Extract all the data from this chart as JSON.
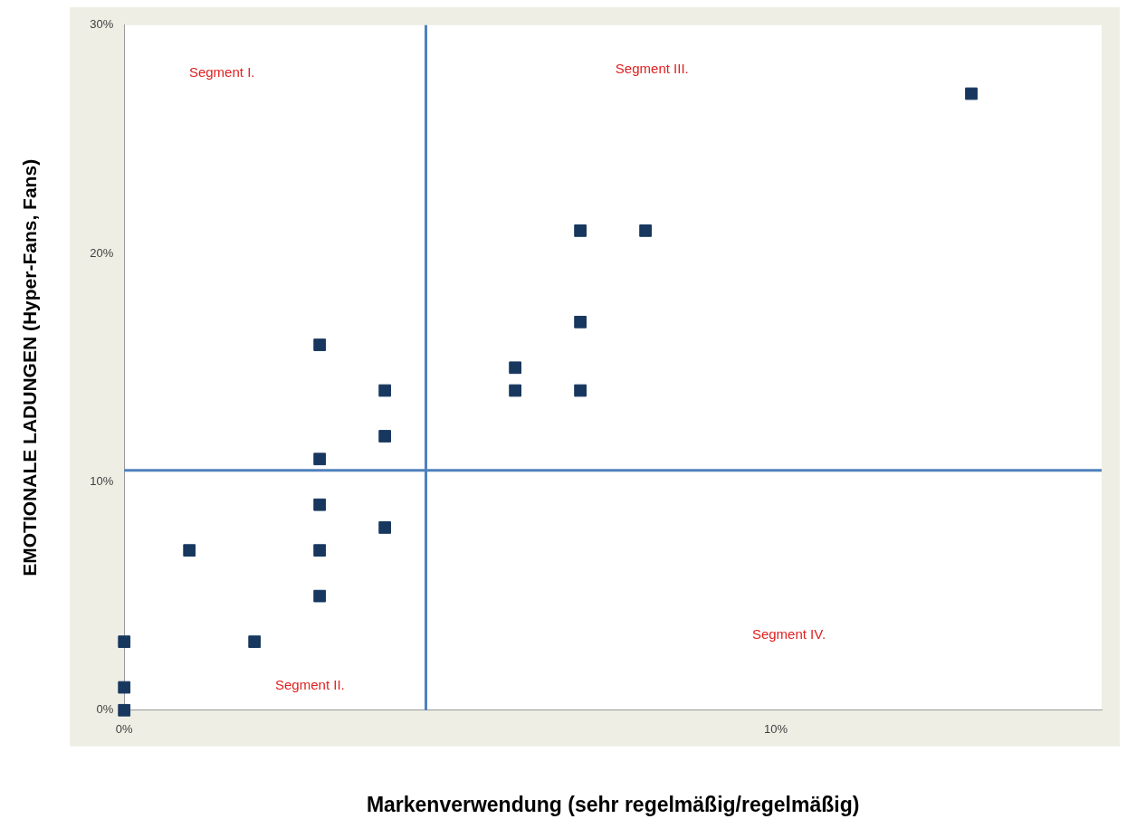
{
  "chart_data": {
    "type": "scatter",
    "xlabel": "Markenverwendung (sehr regelmäßig/regelmäßig)",
    "ylabel": "EMOTIONALE LADUNGEN (Hyper-Fans, Fans)",
    "series": [
      {
        "color": "#17375e",
        "x": [
          13,
          7,
          8,
          7,
          6,
          6,
          7,
          3,
          4,
          4,
          3,
          3,
          4,
          1,
          3,
          3,
          2,
          0,
          0,
          0
        ],
        "values": [
          27,
          21,
          21,
          17,
          15,
          14,
          14,
          16,
          14,
          12,
          11,
          9,
          8,
          7,
          7,
          5,
          3,
          3,
          1,
          0
        ]
      }
    ],
    "marker": "square",
    "grid": false,
    "legend": false,
    "xlim": [
      0,
      15
    ],
    "xticks": [
      {
        "value": 0,
        "label": "0%"
      },
      {
        "value": 10,
        "label": "10%"
      }
    ],
    "ylim": [
      0,
      30
    ],
    "yticks": [
      {
        "value": 0,
        "label": "0%"
      },
      {
        "value": 10,
        "label": "10%"
      },
      {
        "value": 20,
        "label": "20%"
      },
      {
        "value": 30,
        "label": "30%"
      }
    ],
    "ref_lines": [
      {
        "axis": "x",
        "value": 4.63,
        "color": "#4f81bd"
      },
      {
        "axis": "y",
        "value": 10.5,
        "color": "#4f81bd"
      }
    ],
    "annotations": [
      "Segment I.",
      "Segment III.",
      "Segment IV.",
      "Segment II."
    ]
  }
}
